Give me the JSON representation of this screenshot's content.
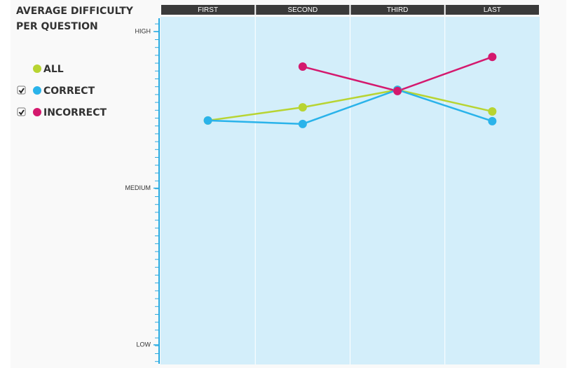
{
  "chart_data": {
    "type": "line",
    "title_lines": [
      "AVERAGE DIFFICULTY",
      "PER QUESTION"
    ],
    "categories": [
      "FIRST",
      "SECOND",
      "THIRD",
      "LAST"
    ],
    "series": [
      {
        "name": "ALL",
        "color": "#b8d432",
        "values": [
          71.6,
          75.8,
          81.4,
          74.5
        ]
      },
      {
        "name": "CORRECT",
        "color": "#2ab3ea",
        "values": [
          71.6,
          70.5,
          81.4,
          71.4
        ]
      },
      {
        "name": "INCORRECT",
        "color": "#d4196e",
        "values": [
          null,
          88.8,
          81.0,
          91.9
        ]
      }
    ],
    "ylim": [
      -5.6,
      103.8
    ],
    "yticks": [
      {
        "value": 100,
        "label": "HIGH"
      },
      {
        "value": 50,
        "label": "MEDIUM"
      },
      {
        "value": 0,
        "label": "LOW"
      }
    ]
  }
}
